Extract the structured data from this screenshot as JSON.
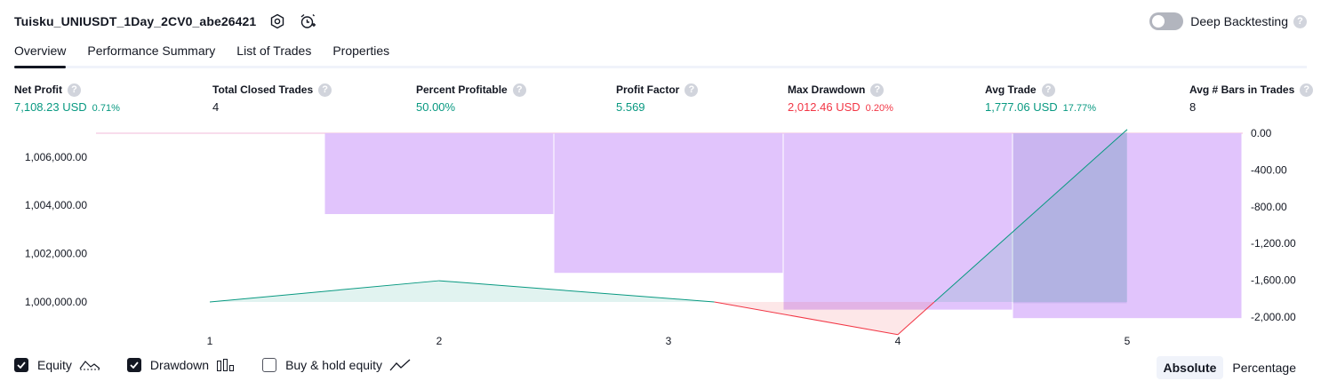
{
  "header": {
    "title": "Tuisku_UNIUSDT_1Day_2CV0_abe26421",
    "settings_icon": "gear-icon",
    "alert_icon": "alarm-plus-icon",
    "deep_backtesting_label": "Deep Backtesting",
    "deep_backtesting_on": false,
    "help_glyph": "?"
  },
  "tabs": [
    {
      "label": "Overview",
      "active": true
    },
    {
      "label": "Performance Summary",
      "active": false
    },
    {
      "label": "List of Trades",
      "active": false
    },
    {
      "label": "Properties",
      "active": false
    }
  ],
  "metrics": [
    {
      "label": "Net Profit",
      "value": "7,108.23 USD",
      "pct": "0.71%",
      "color": "#089981"
    },
    {
      "label": "Total Closed Trades",
      "value": "4",
      "pct": "",
      "color": "#131722"
    },
    {
      "label": "Percent Profitable",
      "value": "50.00%",
      "pct": "",
      "color": "#089981"
    },
    {
      "label": "Profit Factor",
      "value": "5.569",
      "pct": "",
      "color": "#089981"
    },
    {
      "label": "Max Drawdown",
      "value": "2,012.46 USD",
      "pct": "0.20%",
      "color": "#f23645"
    },
    {
      "label": "Avg Trade",
      "value": "1,777.06 USD",
      "pct": "17.77%",
      "color": "#089981"
    },
    {
      "label": "Avg # Bars in Trades",
      "value": "8",
      "pct": "",
      "color": "#131722"
    }
  ],
  "chart_data": {
    "type": "line",
    "x": [
      1,
      2,
      3,
      4,
      5
    ],
    "x_tick_labels": [
      "1",
      "2",
      "3",
      "4",
      "5"
    ],
    "left_ticks": [
      "1,006,000.00",
      "1,004,000.00",
      "1,002,000.00",
      "1,000,000.00"
    ],
    "right_ticks": [
      "0.00",
      "-400.00",
      "-800.00",
      "-1,200.00",
      "-1,600.00",
      "-2,000.00"
    ],
    "left_ylim": [
      999000,
      1007000
    ],
    "right_ylim": [
      -2100,
      0
    ],
    "series": [
      {
        "name": "Equity",
        "axis": "left",
        "x": [
          1,
          2,
          3.2,
          4,
          5
        ],
        "values": [
          1000000,
          1000880,
          1000000,
          998650,
          1007140
        ],
        "up_color": "#089981",
        "down_color": "#f23645"
      },
      {
        "name": "Drawdown",
        "axis": "right",
        "type": "bar",
        "bars": [
          {
            "x0": 0.5,
            "x1": 1.5,
            "value": 0
          },
          {
            "x0": 1.5,
            "x1": 2.5,
            "value": -880
          },
          {
            "x0": 2.5,
            "x1": 3.5,
            "value": -1520
          },
          {
            "x0": 3.5,
            "x1": 4.5,
            "value": -1920
          },
          {
            "x0": 4.5,
            "x1": 5.5,
            "value": -2012.46
          }
        ],
        "color": "#e1c4fc"
      },
      {
        "name": "Drawdown (intrabar)",
        "axis": "right",
        "type": "bar",
        "bars": [
          {
            "x0": 4.5,
            "x1": 5.0,
            "value": -1850
          }
        ],
        "color": "#b8a9e6"
      }
    ]
  },
  "legend": [
    {
      "label": "Equity",
      "checked": true,
      "icon": "equity-line-icon"
    },
    {
      "label": "Drawdown",
      "checked": true,
      "icon": "drawdown-bars-icon"
    },
    {
      "label": "Buy & hold equity",
      "checked": false,
      "icon": "buy-hold-line-icon"
    }
  ],
  "modes": [
    {
      "label": "Absolute",
      "active": true
    },
    {
      "label": "Percentage",
      "active": false
    }
  ]
}
